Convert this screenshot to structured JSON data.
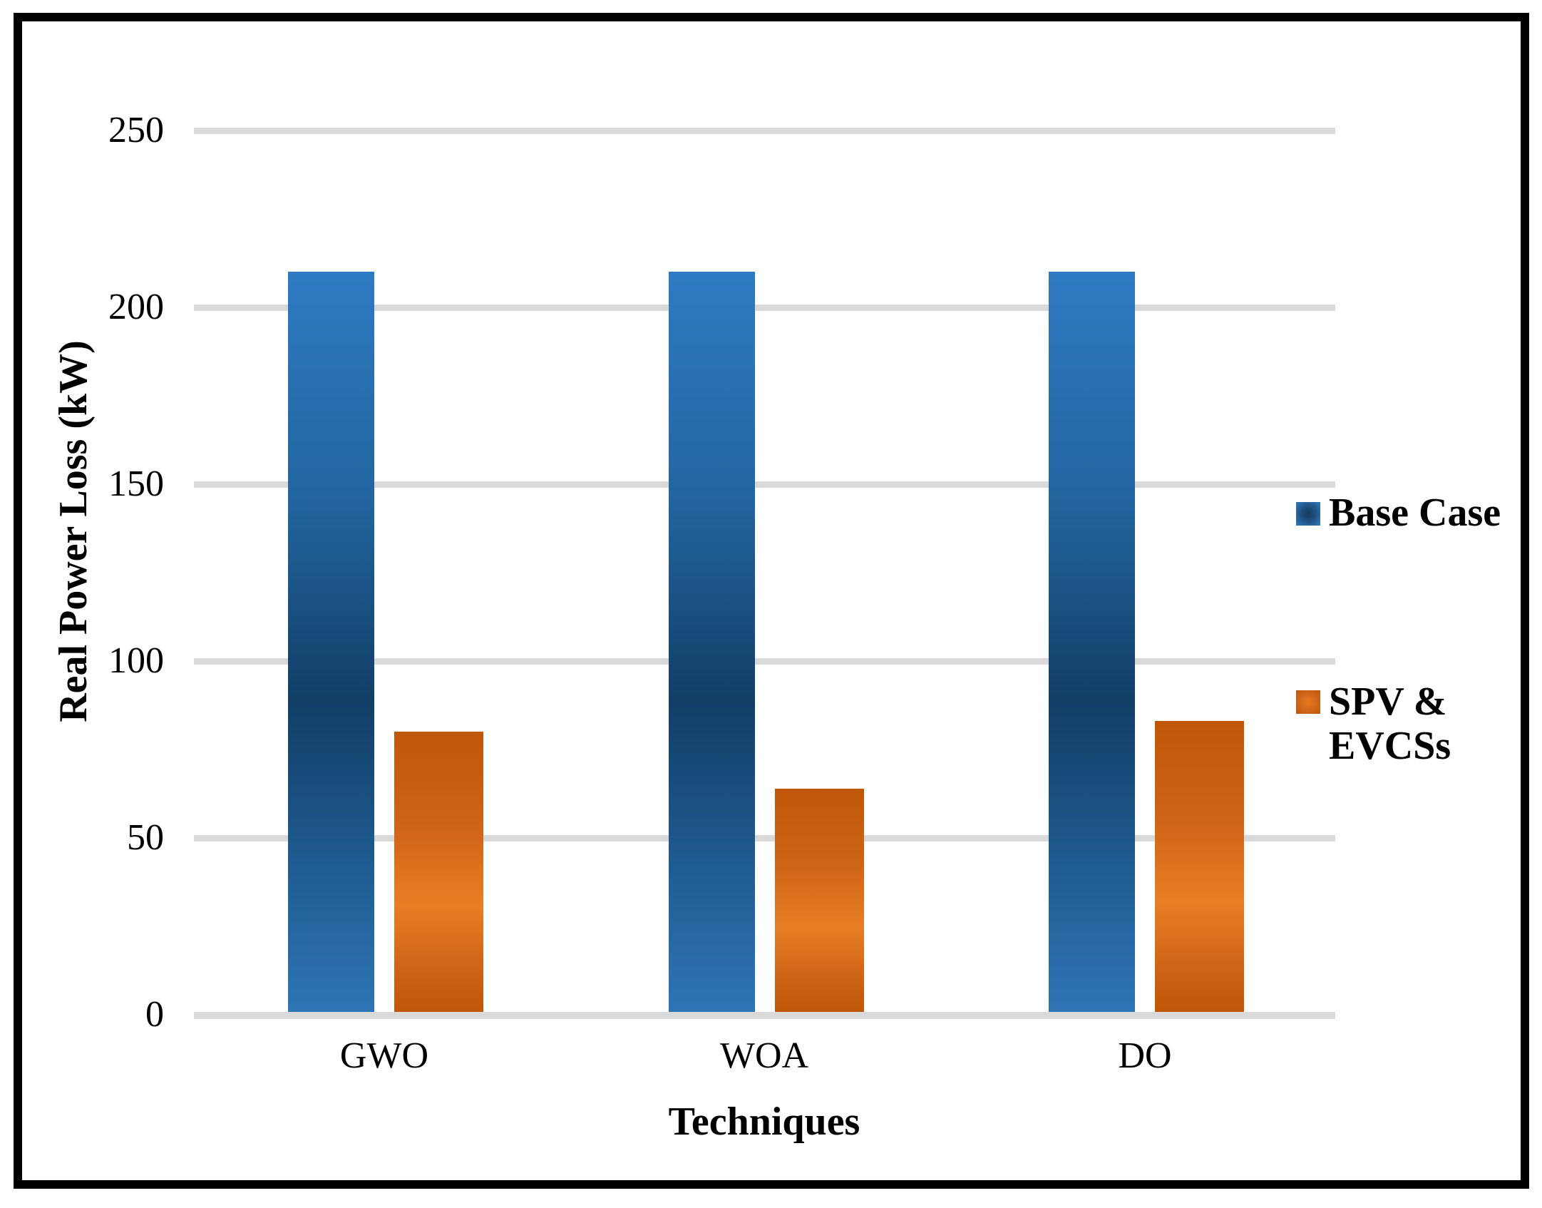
{
  "figure": {
    "background": "#FFFFFF",
    "border_color": "#000000"
  },
  "chart_data": {
    "type": "bar",
    "title": "",
    "xlabel": "Techniques",
    "ylabel": "Real Power Loss (kW)",
    "categories": [
      "GWO",
      "WOA",
      "DO"
    ],
    "series": [
      {
        "name": "Base Case",
        "display_label": "Base Case",
        "values": [
          210,
          210,
          210
        ],
        "color": "#2E75B5",
        "color_accent": "#123E66"
      },
      {
        "name": "SPV & EVCSs",
        "display_label": "SPV &\nEVCSs",
        "values": [
          80,
          64,
          83
        ],
        "color": "#C25A10",
        "color_accent": "#E8791F"
      }
    ],
    "ylim": [
      0,
      250
    ],
    "yticks": [
      250,
      200,
      150,
      100,
      50,
      0
    ],
    "grid": "horizontal",
    "gridline_color": "#D9D9D9",
    "legend_position": "right"
  }
}
